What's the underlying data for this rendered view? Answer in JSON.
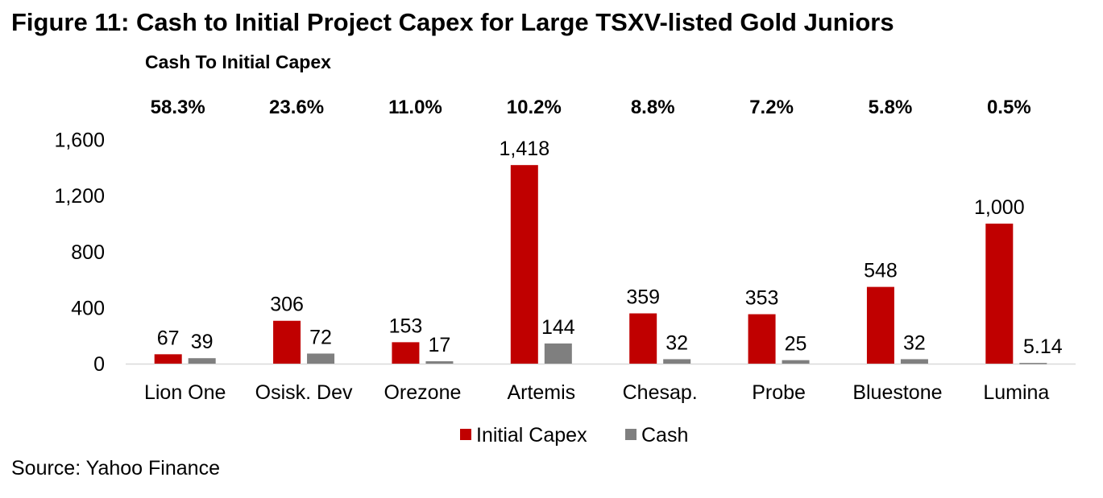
{
  "chart_data": {
    "type": "bar",
    "title": "Figure 11: Cash to Initial Project Capex for Large TSXV-listed Gold Juniors",
    "subtitle": "Cash To Initial Capex",
    "categories": [
      "Lion One",
      "Osisk. Dev",
      "Orezone",
      "Artemis",
      "Chesap.",
      "Probe",
      "Bluestone",
      "Lumina"
    ],
    "ratios": [
      "58.3%",
      "23.6%",
      "11.0%",
      "10.2%",
      "8.8%",
      "7.2%",
      "5.8%",
      "0.5%"
    ],
    "series": [
      {
        "name": "Initial Capex",
        "color": "#C00000",
        "values": [
          67,
          306,
          153,
          1418,
          359,
          353,
          548,
          1000
        ],
        "labels": [
          "67",
          "306",
          "153",
          "1,418",
          "359",
          "353",
          "548",
          "1,000"
        ]
      },
      {
        "name": "Cash",
        "color": "#7F7F7F",
        "values": [
          39,
          72,
          17,
          144,
          32,
          25,
          32,
          5.14
        ],
        "labels": [
          "39",
          "72",
          "17",
          "144",
          "32",
          "25",
          "32",
          "5.14"
        ]
      }
    ],
    "yticks": [
      "0",
      "400",
      "800",
      "1,200",
      "1,600"
    ],
    "ytick_values": [
      0,
      400,
      800,
      1200,
      1600
    ],
    "ylim": [
      0,
      1600
    ],
    "xlabel": "",
    "ylabel": "",
    "grid": false,
    "legend": "bottom"
  },
  "source": "Source: Yahoo Finance"
}
